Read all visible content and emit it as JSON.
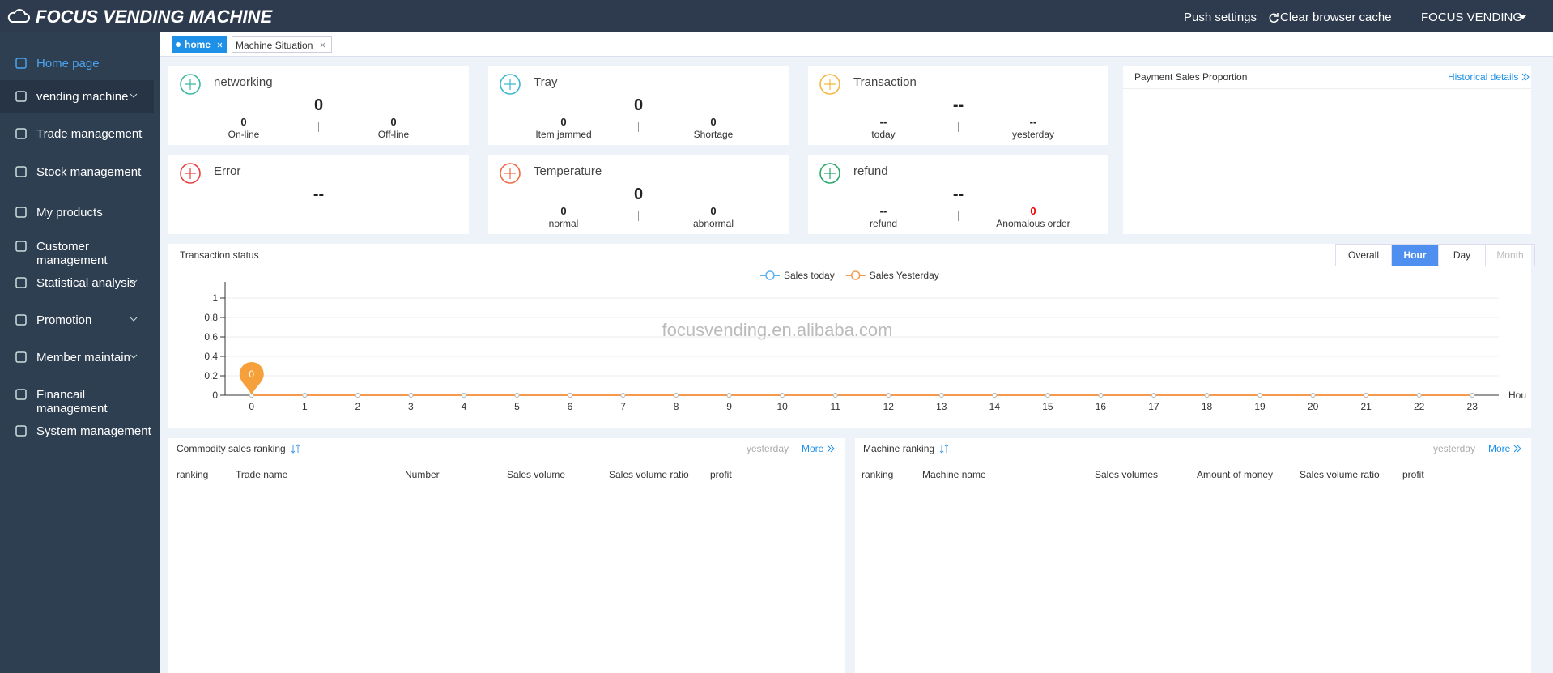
{
  "header": {
    "brand": "FOCUS VENDING MACHINE",
    "links": [
      "Push settings",
      "Clear browser cache"
    ],
    "user": "FOCUS VENDING"
  },
  "sidebar": [
    "Home page",
    "vending machine",
    "Trade management",
    "Stock management",
    "My products",
    "Customer management",
    "Statistical analysis",
    "Promotion",
    "Member maintain",
    "Financail management",
    "System management"
  ],
  "tabs": [
    "home",
    "Machine Situation"
  ],
  "cards": [
    {
      "title": "networking",
      "value": 0,
      "items": [
        {
          "value": 0,
          "label": "On-line"
        },
        {
          "value": 0,
          "label": "Off-line"
        }
      ]
    },
    {
      "title": "Tray",
      "value": 0,
      "items": [
        {
          "value": 0,
          "label": "Item jammed"
        },
        {
          "value": 0,
          "label": "Shortage"
        }
      ]
    },
    {
      "title": "Transaction",
      "value": "--",
      "items": [
        {
          "value": "--",
          "label": "today"
        },
        {
          "value": "--",
          "label": "yesterday"
        }
      ]
    },
    {
      "title": "Error",
      "value": "--",
      "items": []
    },
    {
      "title": "Temperature",
      "value": 0,
      "items": [
        {
          "value": 0,
          "label": "normal"
        },
        {
          "value": 0,
          "label": "abnormal"
        }
      ]
    },
    {
      "title": "refund",
      "value": "--",
      "items": [
        {
          "value": "--",
          "label": "refund"
        },
        {
          "value": 0,
          "label": "Anomalous order"
        }
      ]
    }
  ],
  "payment": {
    "title": "Payment Sales Proportion",
    "link": "Historical details"
  },
  "chart_data": {
    "type": "line",
    "title": "Transaction status",
    "buttons": [
      "Overall",
      "Hour",
      "Day",
      "Month"
    ],
    "x_label": "Hou",
    "watermark": "focusvending.en.alibaba.com",
    "categories": [
      "0",
      "1",
      "2",
      "3",
      "4",
      "5",
      "6",
      "7",
      "8",
      "9",
      "10",
      "11",
      "12",
      "13",
      "14",
      "15",
      "16",
      "17",
      "18",
      "19",
      "20",
      "21",
      "22",
      "23"
    ],
    "series": [
      {
        "name": "Sales today",
        "color": "#5ab1ef",
        "values": [
          0,
          0,
          0,
          0,
          0,
          0,
          0,
          0,
          0,
          0,
          0,
          0,
          0,
          0,
          0,
          0,
          0,
          0,
          0,
          0,
          0,
          0,
          0,
          0
        ]
      },
      {
        "name": "Sales Yesterday",
        "color": "#f5994e",
        "values": [
          0,
          0,
          0,
          0,
          0,
          0,
          0,
          0,
          0,
          0,
          0,
          0,
          0,
          0,
          0,
          0,
          0,
          0,
          0,
          0,
          0,
          0,
          0,
          0
        ]
      }
    ],
    "ylim": [
      0,
      1
    ],
    "yticks": [
      0,
      0.2,
      0.4,
      0.6,
      0.8,
      1
    ],
    "grid": true,
    "markpoint": 0
  },
  "rankings": [
    {
      "title": "Commodity sales ranking",
      "period": "yesterday",
      "more": "More",
      "columns": [
        "ranking",
        "Trade name",
        "Number",
        "Sales volume",
        "Sales volume ratio",
        "profit"
      ]
    },
    {
      "title": "Machine ranking",
      "period": "yesterday",
      "more": "More",
      "columns": [
        "ranking",
        "Machine name",
        "Sales volumes",
        "Amount of money",
        "Sales volume ratio",
        "profit"
      ]
    }
  ]
}
